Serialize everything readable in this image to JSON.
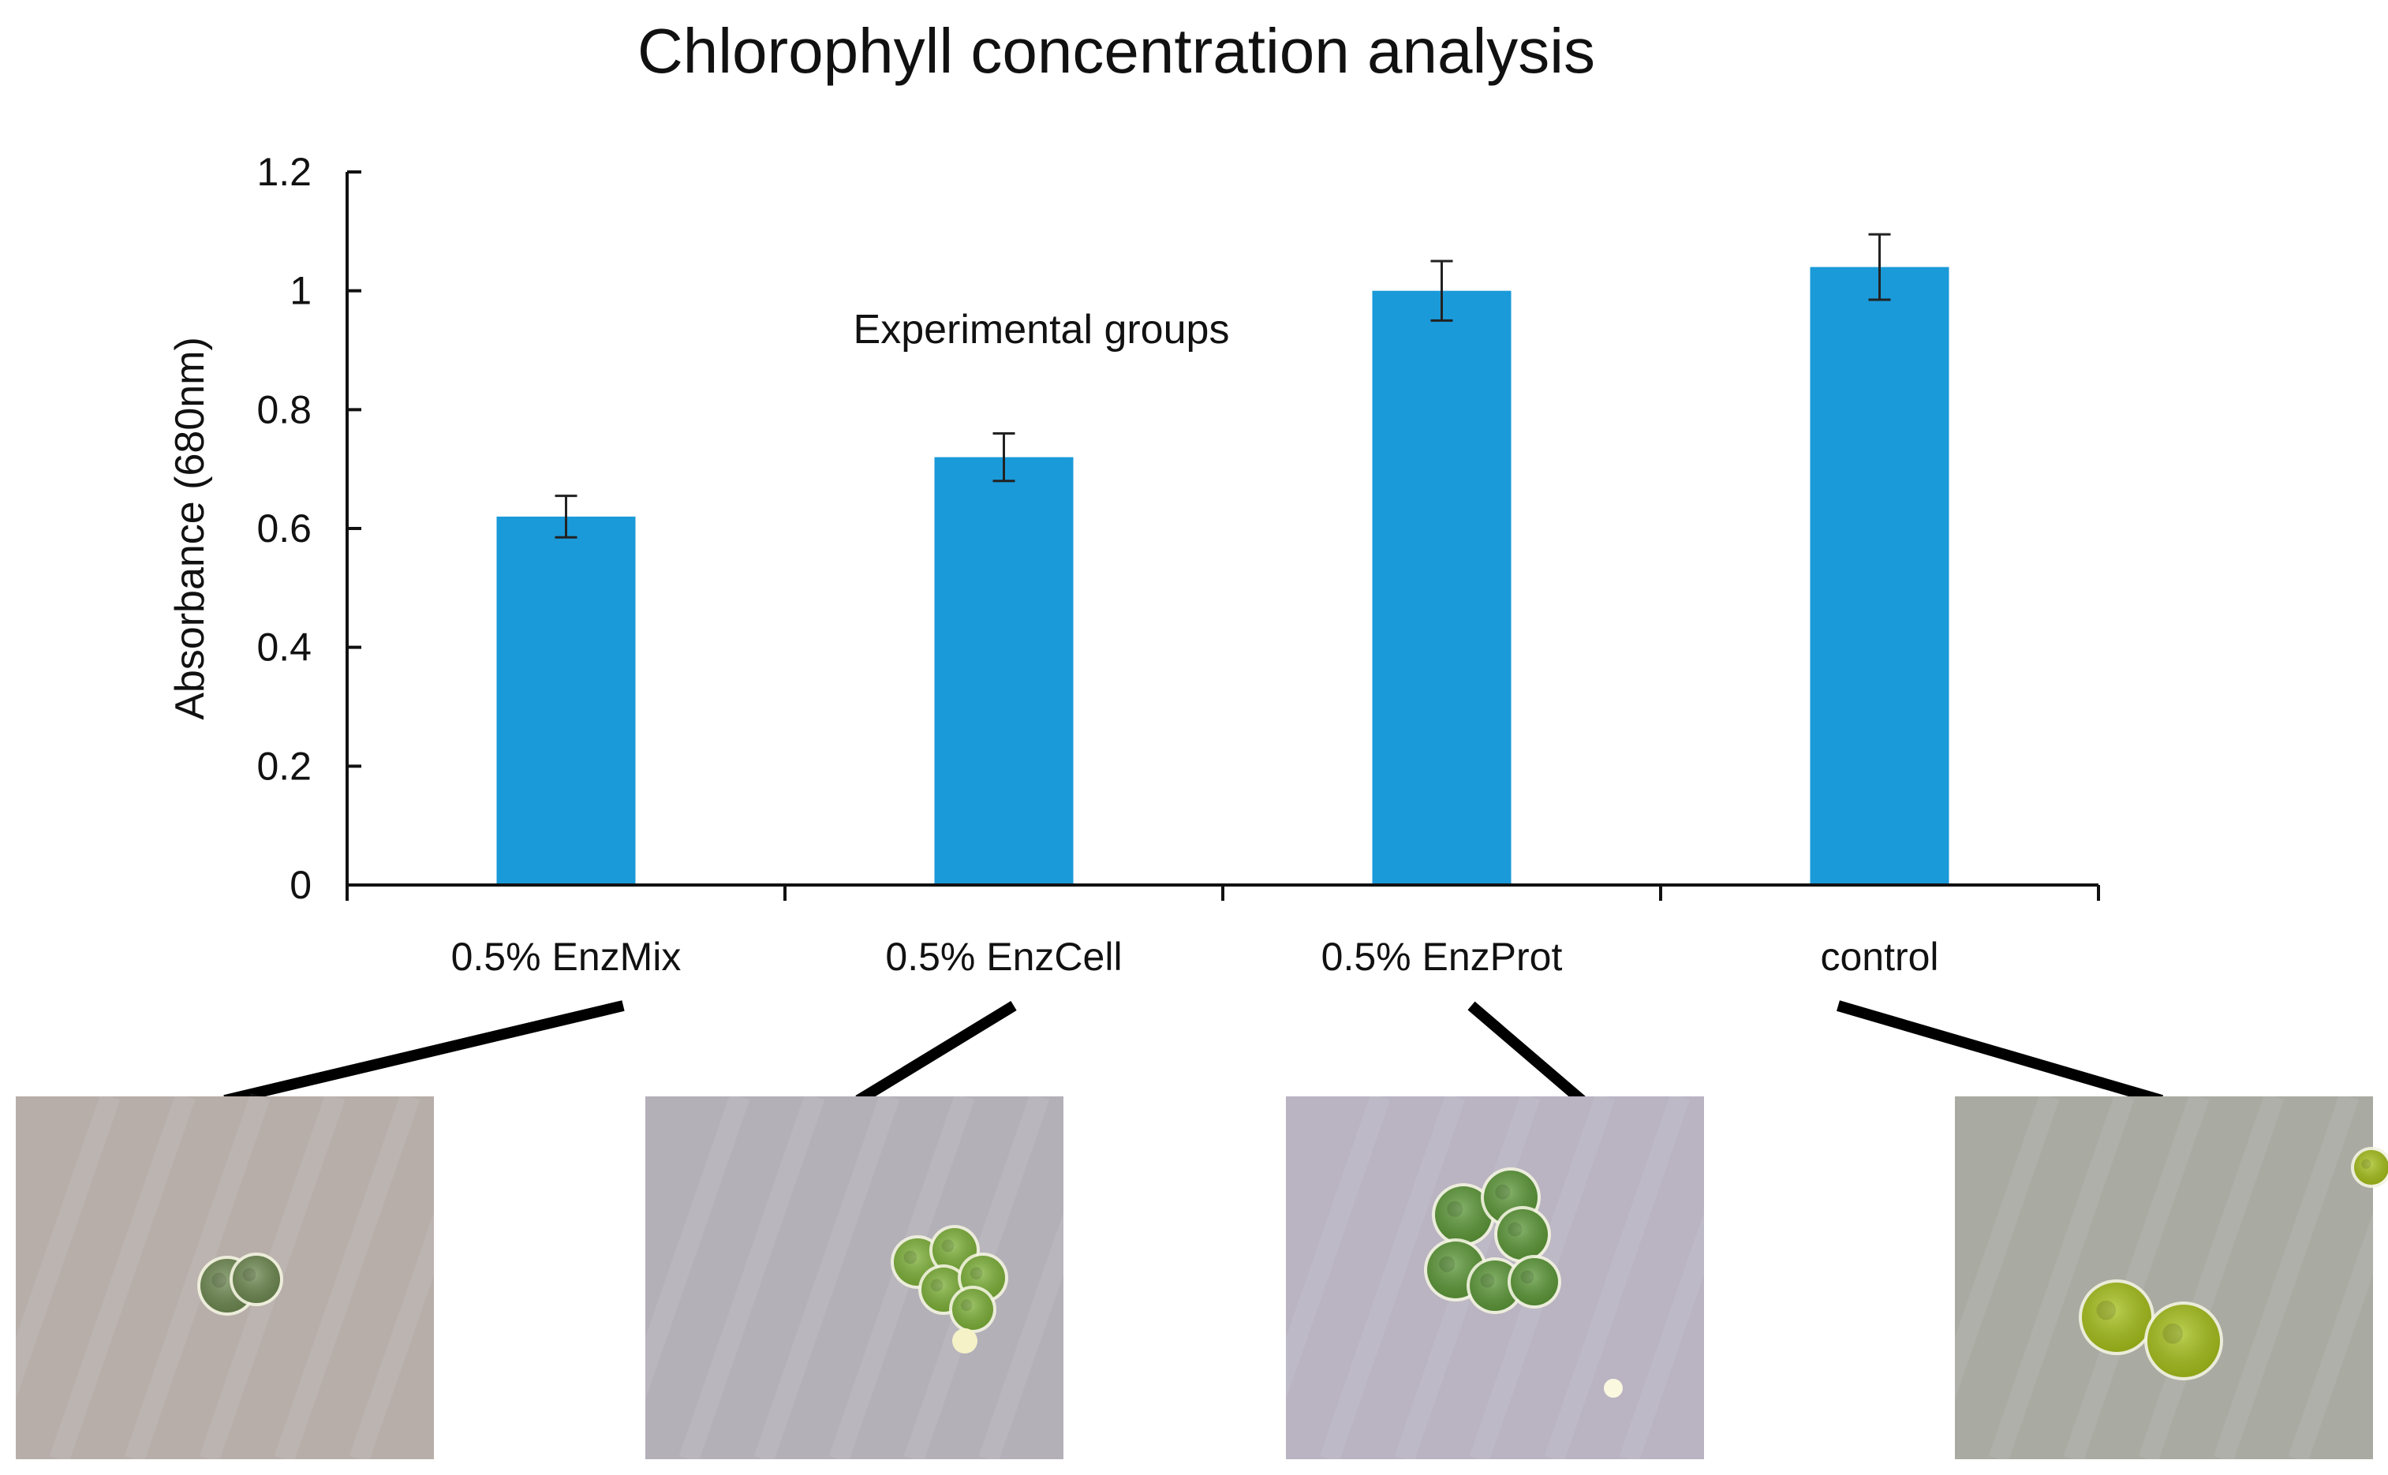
{
  "chart_data": {
    "type": "bar",
    "title": "Chlorophyll concentration analysis",
    "xlabel": "",
    "ylabel": "Absorbance (680nm)",
    "annotation": "Experimental groups",
    "categories": [
      "0.5% EnzMix",
      "0.5% EnzCell",
      "0.5%  EnzProt",
      "control"
    ],
    "values": [
      0.62,
      0.72,
      1.0,
      1.04
    ],
    "errors": [
      0.035,
      0.04,
      0.05,
      0.055
    ],
    "ylim": [
      0,
      1.2
    ],
    "yticks": [
      "0",
      "0.2",
      "0.4",
      "0.6",
      "0.8",
      "1",
      "1.2"
    ],
    "ytick_values": [
      0,
      0.2,
      0.4,
      0.6,
      0.8,
      1.0,
      1.2
    ],
    "grid": false,
    "legend": "none",
    "bar_color": "#1a9ad9",
    "micrographs": [
      {
        "category": "0.5% EnzMix",
        "background": "#b7aeaa",
        "cell_color": "#6f8a52"
      },
      {
        "category": "0.5% EnzCell",
        "background": "#b3b0b8",
        "cell_color": "#7fb33a"
      },
      {
        "category": "0.5%  EnzProt",
        "background": "#b9b3c2",
        "cell_color": "#5e9a3a"
      },
      {
        "category": "control",
        "background": "#a9aaa2",
        "cell_color": "#a8c21c"
      }
    ]
  }
}
